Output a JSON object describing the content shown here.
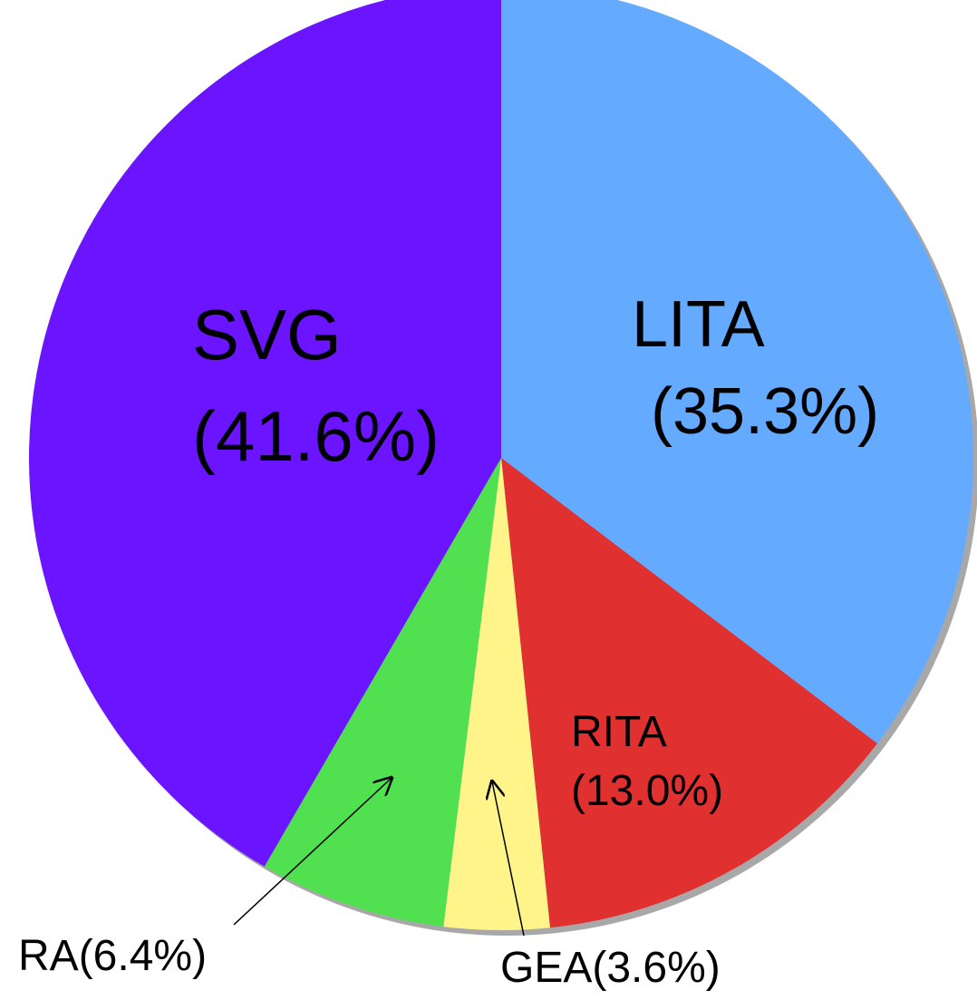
{
  "chart_data": {
    "type": "pie",
    "categories": [
      "LITA",
      "RITA",
      "GEA",
      "RA",
      "SVG"
    ],
    "values": [
      35.3,
      13.0,
      3.6,
      6.4,
      41.6
    ],
    "value_labels": [
      "(35.3%)",
      "(13.0%)",
      "(3.6%)",
      "(6.4%)",
      "(41.6%)"
    ],
    "colors": [
      "#64aaff",
      "#e03030",
      "#fff48a",
      "#50e050",
      "#6a14ff"
    ]
  }
}
